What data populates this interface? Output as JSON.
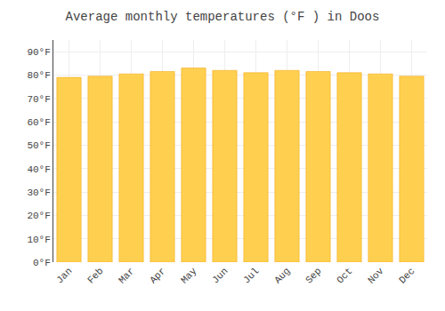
{
  "chart_data": {
    "type": "bar",
    "title": "Average monthly temperatures (°F ) in Doos",
    "categories": [
      "Jan",
      "Feb",
      "Mar",
      "Apr",
      "May",
      "Jun",
      "Jul",
      "Aug",
      "Sep",
      "Oct",
      "Nov",
      "Dec"
    ],
    "values": [
      79.0,
      79.5,
      80.5,
      81.5,
      83.0,
      82.0,
      81.0,
      82.0,
      81.5,
      81.0,
      80.5,
      79.5
    ],
    "color": "#FFD050",
    "ylim": [
      0,
      95
    ],
    "yticks": [
      {
        "value": 0,
        "label": "0°F"
      },
      {
        "value": 10,
        "label": "10°F"
      },
      {
        "value": 20,
        "label": "20°F"
      },
      {
        "value": 30,
        "label": "30°F"
      },
      {
        "value": 40,
        "label": "40°F"
      },
      {
        "value": 50,
        "label": "50°F"
      },
      {
        "value": 60,
        "label": "60°F"
      },
      {
        "value": 70,
        "label": "70°F"
      },
      {
        "value": 80,
        "label": "80°F"
      },
      {
        "value": 90,
        "label": "90°F"
      }
    ],
    "grid": true
  }
}
